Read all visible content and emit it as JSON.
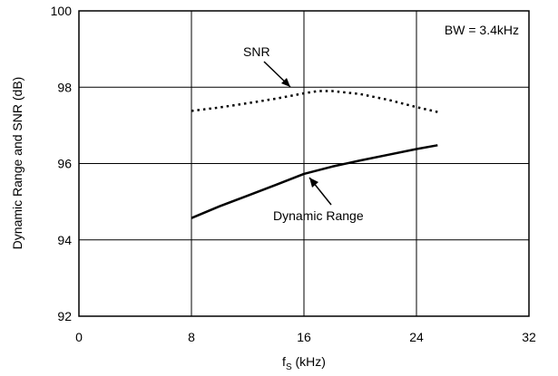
{
  "chart_data": {
    "type": "line",
    "xlabel_main": "f",
    "xlabel_sub": "S",
    "xlabel_unit": " (kHz)",
    "ylabel": "Dynamic Range and SNR (dB)",
    "xlim": [
      0,
      32
    ],
    "ylim": [
      92,
      100
    ],
    "xticks": [
      0,
      8,
      16,
      24,
      32
    ],
    "yticks": [
      92,
      94,
      96,
      98,
      100
    ],
    "xtick_labels": [
      "0",
      "8",
      "16",
      "24",
      "32"
    ],
    "ytick_labels": [
      "92",
      "94",
      "96",
      "98",
      "100"
    ],
    "grid": true,
    "series": [
      {
        "name": "SNR",
        "style": "dotted",
        "x": [
          8,
          10,
          12,
          14,
          16,
          17,
          18,
          20,
          22,
          24,
          25.5
        ],
        "y": [
          97.38,
          97.47,
          97.58,
          97.7,
          97.84,
          97.9,
          97.9,
          97.82,
          97.67,
          97.48,
          97.35
        ]
      },
      {
        "name": "Dynamic Range",
        "style": "solid",
        "x": [
          8,
          10,
          12,
          14,
          16,
          18,
          20,
          22,
          24,
          25.5
        ],
        "y": [
          94.57,
          94.88,
          95.16,
          95.44,
          95.73,
          95.92,
          96.08,
          96.23,
          96.38,
          96.48
        ]
      }
    ],
    "annotations": {
      "bw": "BW = 3.4kHz",
      "snr": "SNR",
      "dr": "Dynamic Range"
    }
  }
}
